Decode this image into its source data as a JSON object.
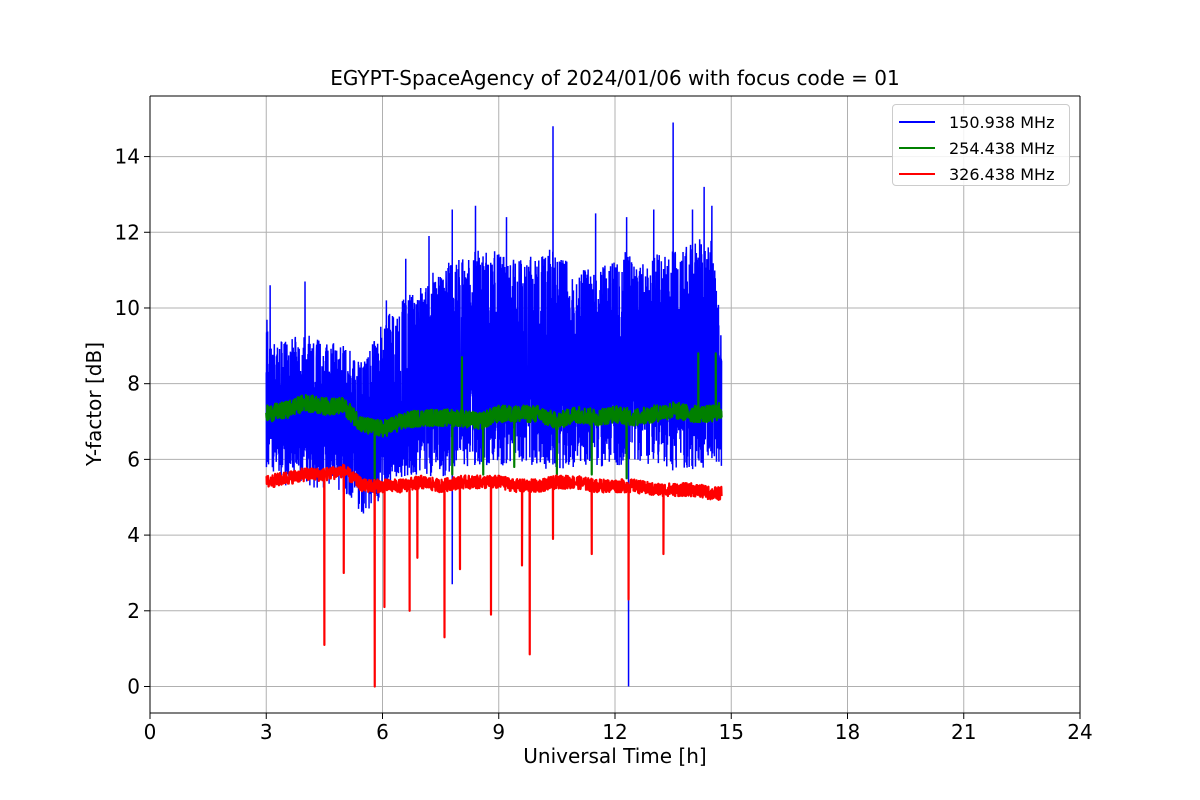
{
  "chart_data": {
    "type": "line",
    "title": "EGYPT-SpaceAgency of 2024/01/06 with focus code = 01",
    "xlabel": "Universal Time [h]",
    "ylabel": "Y-factor [dB]",
    "xlim": [
      0,
      24
    ],
    "ylim": [
      -0.7,
      15.6
    ],
    "xticks": [
      0,
      3,
      6,
      9,
      12,
      15,
      18,
      21,
      24
    ],
    "yticks": [
      0,
      2,
      4,
      6,
      8,
      10,
      12,
      14
    ],
    "grid": true,
    "legend_position": "top-right",
    "x_range_of_data": [
      3.0,
      14.75
    ],
    "series": [
      {
        "name": "150.938 MHz",
        "color": "#0000ff",
        "x": [
          3.0,
          3.1,
          3.5,
          4.0,
          4.5,
          5.0,
          5.5,
          6.0,
          6.5,
          7.0,
          7.5,
          8.0,
          8.5,
          9.0,
          9.5,
          10.0,
          10.4,
          10.5,
          11.0,
          11.5,
          12.0,
          12.3,
          12.35,
          12.5,
          13.0,
          13.5,
          14.0,
          14.5,
          14.75
        ],
        "center": [
          7.2,
          7.3,
          7.0,
          7.2,
          6.9,
          6.9,
          6.4,
          6.8,
          7.0,
          7.5,
          7.6,
          8.2,
          8.4,
          8.2,
          8.3,
          8.2,
          8.4,
          8.2,
          8.3,
          8.0,
          8.0,
          8.2,
          8.2,
          8.0,
          8.2,
          8.3,
          8.3,
          8.4,
          8.3
        ],
        "low": [
          5.8,
          5.6,
          5.3,
          5.3,
          5.2,
          5.1,
          4.5,
          5.0,
          5.5,
          5.6,
          5.5,
          5.8,
          5.8,
          5.8,
          5.9,
          5.8,
          5.7,
          5.7,
          5.8,
          5.8,
          5.8,
          5.7,
          5.7,
          5.9,
          5.8,
          5.7,
          5.7,
          5.8,
          5.8
        ],
        "high": [
          10.4,
          9.0,
          9.2,
          9.3,
          9.2,
          9.0,
          8.6,
          9.7,
          10.2,
          10.6,
          11.2,
          11.3,
          11.6,
          11.5,
          11.3,
          11.4,
          11.6,
          11.3,
          11.2,
          11.0,
          11.3,
          11.5,
          11.5,
          11.2,
          11.4,
          11.5,
          11.9,
          11.8,
          9.3
        ],
        "peaks": [
          [
            3.1,
            10.6
          ],
          [
            4.0,
            10.7
          ],
          [
            6.1,
            10.2
          ],
          [
            6.6,
            11.3
          ],
          [
            7.2,
            11.9
          ],
          [
            7.8,
            12.6
          ],
          [
            8.4,
            12.7
          ],
          [
            9.2,
            12.4
          ],
          [
            10.4,
            14.8
          ],
          [
            11.5,
            12.5
          ],
          [
            12.3,
            12.4
          ],
          [
            13.0,
            12.6
          ],
          [
            13.5,
            14.9
          ],
          [
            14.0,
            12.6
          ],
          [
            14.3,
            13.2
          ],
          [
            14.5,
            12.7
          ]
        ],
        "dips": [
          [
            12.35,
            0.0
          ],
          [
            7.8,
            2.7
          ]
        ]
      },
      {
        "name": "254.438 MHz",
        "color": "#008000",
        "x": [
          3.0,
          3.5,
          4.0,
          4.5,
          5.0,
          5.5,
          6.0,
          6.5,
          7.0,
          7.5,
          8.0,
          8.5,
          9.0,
          9.5,
          10.0,
          10.5,
          11.0,
          11.5,
          12.0,
          12.5,
          13.0,
          13.5,
          14.0,
          14.5,
          14.75
        ],
        "y": [
          7.2,
          7.3,
          7.5,
          7.4,
          7.4,
          6.9,
          6.8,
          7.0,
          7.1,
          7.1,
          7.1,
          7.0,
          7.2,
          7.2,
          7.2,
          7.0,
          7.2,
          7.1,
          7.2,
          7.1,
          7.2,
          7.3,
          7.2,
          7.2,
          7.3
        ],
        "peaks": [
          [
            8.05,
            8.7
          ],
          [
            14.15,
            8.8
          ],
          [
            14.6,
            8.8
          ]
        ],
        "dips": [
          [
            5.8,
            5.0
          ],
          [
            7.8,
            5.6
          ],
          [
            8.6,
            5.6
          ],
          [
            9.4,
            5.8
          ],
          [
            10.5,
            5.6
          ],
          [
            11.4,
            5.6
          ],
          [
            12.3,
            5.5
          ]
        ]
      },
      {
        "name": "326.438 MHz",
        "color": "#ff0000",
        "x": [
          3.0,
          3.5,
          4.0,
          4.5,
          5.0,
          5.5,
          6.0,
          6.5,
          7.0,
          7.5,
          8.0,
          8.5,
          9.0,
          9.5,
          10.0,
          10.5,
          11.0,
          11.5,
          12.0,
          12.5,
          13.0,
          13.5,
          14.0,
          14.5,
          14.75
        ],
        "y": [
          5.4,
          5.5,
          5.6,
          5.6,
          5.7,
          5.3,
          5.3,
          5.3,
          5.4,
          5.3,
          5.4,
          5.4,
          5.4,
          5.3,
          5.3,
          5.4,
          5.4,
          5.3,
          5.3,
          5.3,
          5.2,
          5.2,
          5.2,
          5.1,
          5.1
        ],
        "dips": [
          [
            4.5,
            1.1
          ],
          [
            5.0,
            3.0
          ],
          [
            5.8,
            0.0
          ],
          [
            6.05,
            2.1
          ],
          [
            6.7,
            2.0
          ],
          [
            7.6,
            1.3
          ],
          [
            8.0,
            3.1
          ],
          [
            8.8,
            1.9
          ],
          [
            9.8,
            0.85
          ],
          [
            10.4,
            3.9
          ],
          [
            11.4,
            3.5
          ],
          [
            12.35,
            2.3
          ],
          [
            13.25,
            3.5
          ],
          [
            6.9,
            3.4
          ],
          [
            9.6,
            3.2
          ]
        ]
      }
    ]
  }
}
